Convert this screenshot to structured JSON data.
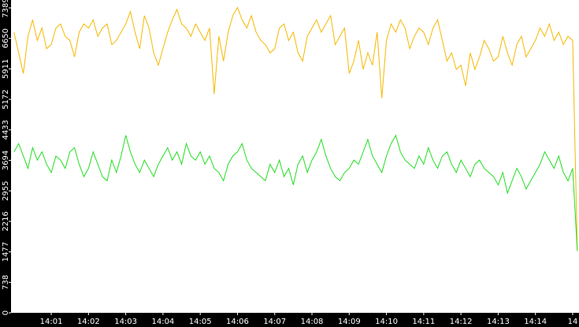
{
  "chart_data": {
    "type": "line",
    "x": [
      0,
      0.125,
      0.25,
      0.375,
      0.5,
      0.625,
      0.75,
      0.875,
      1,
      1.125,
      1.25,
      1.375,
      1.5,
      1.625,
      1.75,
      1.875,
      2,
      2.125,
      2.25,
      2.375,
      2.5,
      2.625,
      2.75,
      2.875,
      3,
      3.125,
      3.25,
      3.375,
      3.5,
      3.625,
      3.75,
      3.875,
      4,
      4.125,
      4.25,
      4.375,
      4.5,
      4.625,
      4.75,
      4.875,
      5,
      5.125,
      5.25,
      5.375,
      5.5,
      5.625,
      5.75,
      5.875,
      6,
      6.125,
      6.25,
      6.375,
      6.5,
      6.625,
      6.75,
      6.875,
      7,
      7.125,
      7.25,
      7.375,
      7.5,
      7.625,
      7.75,
      7.875,
      8,
      8.125,
      8.25,
      8.375,
      8.5,
      8.625,
      8.75,
      8.875,
      9,
      9.125,
      9.25,
      9.375,
      9.5,
      9.625,
      9.75,
      9.875,
      10,
      10.125,
      10.25,
      10.375,
      10.5,
      10.625,
      10.75,
      10.875,
      11,
      11.125,
      11.25,
      11.375,
      11.5,
      11.625,
      11.75,
      11.875,
      12,
      12.125,
      12.25,
      12.375,
      12.5,
      12.625,
      12.75,
      12.875,
      13,
      13.125,
      13.25,
      13.375,
      13.5,
      13.625,
      13.75,
      13.875,
      14,
      14.125,
      14.25,
      14.375,
      14.5,
      14.625,
      14.75,
      14.875,
      15,
      15.125
    ],
    "series": [
      {
        "color": "#f5b800",
        "values": [
          6800,
          6300,
          5800,
          6700,
          7100,
          6600,
          6900,
          6400,
          6500,
          6900,
          7000,
          6700,
          6600,
          6200,
          6800,
          7000,
          6900,
          7100,
          6700,
          6900,
          7000,
          6500,
          6600,
          6800,
          7000,
          7300,
          6800,
          6400,
          7200,
          6900,
          6300,
          6000,
          6400,
          6800,
          7100,
          7350,
          7000,
          6900,
          6700,
          7000,
          6800,
          6600,
          6900,
          5300,
          6700,
          6100,
          6800,
          7200,
          7400,
          7100,
          6900,
          7200,
          6800,
          6600,
          6500,
          6300,
          6400,
          6900,
          7000,
          6600,
          6800,
          6300,
          6100,
          6700,
          6900,
          7100,
          6800,
          7000,
          7200,
          6500,
          6700,
          6900,
          5800,
          6100,
          6600,
          5900,
          6300,
          6000,
          6800,
          5200,
          6600,
          7000,
          6800,
          7100,
          6900,
          6400,
          6700,
          6900,
          6800,
          6500,
          6900,
          7100,
          6600,
          6100,
          6300,
          5900,
          6000,
          5500,
          6300,
          5900,
          6200,
          6600,
          6400,
          6100,
          6200,
          6700,
          6300,
          6000,
          6500,
          6700,
          6200,
          6400,
          6600,
          6900,
          6700,
          7000,
          6600,
          6800,
          6500,
          6700,
          6600,
          1500
        ]
      },
      {
        "color": "#22dd22",
        "values": [
          3900,
          4100,
          3800,
          3500,
          4000,
          3700,
          3900,
          3600,
          3400,
          3800,
          3700,
          3500,
          3900,
          4000,
          3600,
          3300,
          3500,
          3900,
          3600,
          3300,
          3200,
          3700,
          3400,
          3800,
          4300,
          3900,
          3600,
          3400,
          3700,
          3500,
          3300,
          3600,
          3800,
          4000,
          3700,
          3900,
          3600,
          4100,
          3800,
          3700,
          3900,
          3600,
          3800,
          3500,
          3400,
          3200,
          3600,
          3800,
          3900,
          4100,
          3700,
          3500,
          3400,
          3300,
          3200,
          3600,
          3400,
          3700,
          3300,
          3500,
          3100,
          3600,
          3800,
          3400,
          3700,
          3900,
          4200,
          3800,
          3500,
          3300,
          3200,
          3400,
          3500,
          3700,
          3600,
          3900,
          4200,
          3800,
          3600,
          3400,
          3800,
          4100,
          4300,
          3900,
          3700,
          3600,
          3500,
          3800,
          3600,
          4000,
          3700,
          3500,
          3800,
          3900,
          3600,
          3400,
          3700,
          3500,
          3300,
          3600,
          3700,
          3500,
          3400,
          3300,
          3100,
          3400,
          2900,
          3200,
          3500,
          3300,
          3000,
          3200,
          3400,
          3600,
          3900,
          3700,
          3500,
          3800,
          3400,
          3200,
          3500,
          1500
        ]
      }
    ],
    "xlim": [
      -0.08,
      15.17
    ],
    "xticks": [
      {
        "value": 1,
        "label": "14:01"
      },
      {
        "value": 2,
        "label": "14:02"
      },
      {
        "value": 3,
        "label": "14:03"
      },
      {
        "value": 4,
        "label": "14:04"
      },
      {
        "value": 5,
        "label": "14:05"
      },
      {
        "value": 6,
        "label": "14:06"
      },
      {
        "value": 7,
        "label": "14:07"
      },
      {
        "value": 8,
        "label": "14:08"
      },
      {
        "value": 9,
        "label": "14:09"
      },
      {
        "value": 10,
        "label": "14:10"
      },
      {
        "value": 11,
        "label": "14:11"
      },
      {
        "value": 12,
        "label": "14:12"
      },
      {
        "value": 13,
        "label": "14:13"
      },
      {
        "value": 14,
        "label": "14:14"
      },
      {
        "value": 15,
        "label": "14"
      }
    ],
    "ylim": [
      0,
      7580
    ],
    "yticks": [
      0,
      738,
      1477,
      2216,
      2955,
      3694,
      4433,
      5172,
      5911,
      6650,
      7389
    ]
  }
}
